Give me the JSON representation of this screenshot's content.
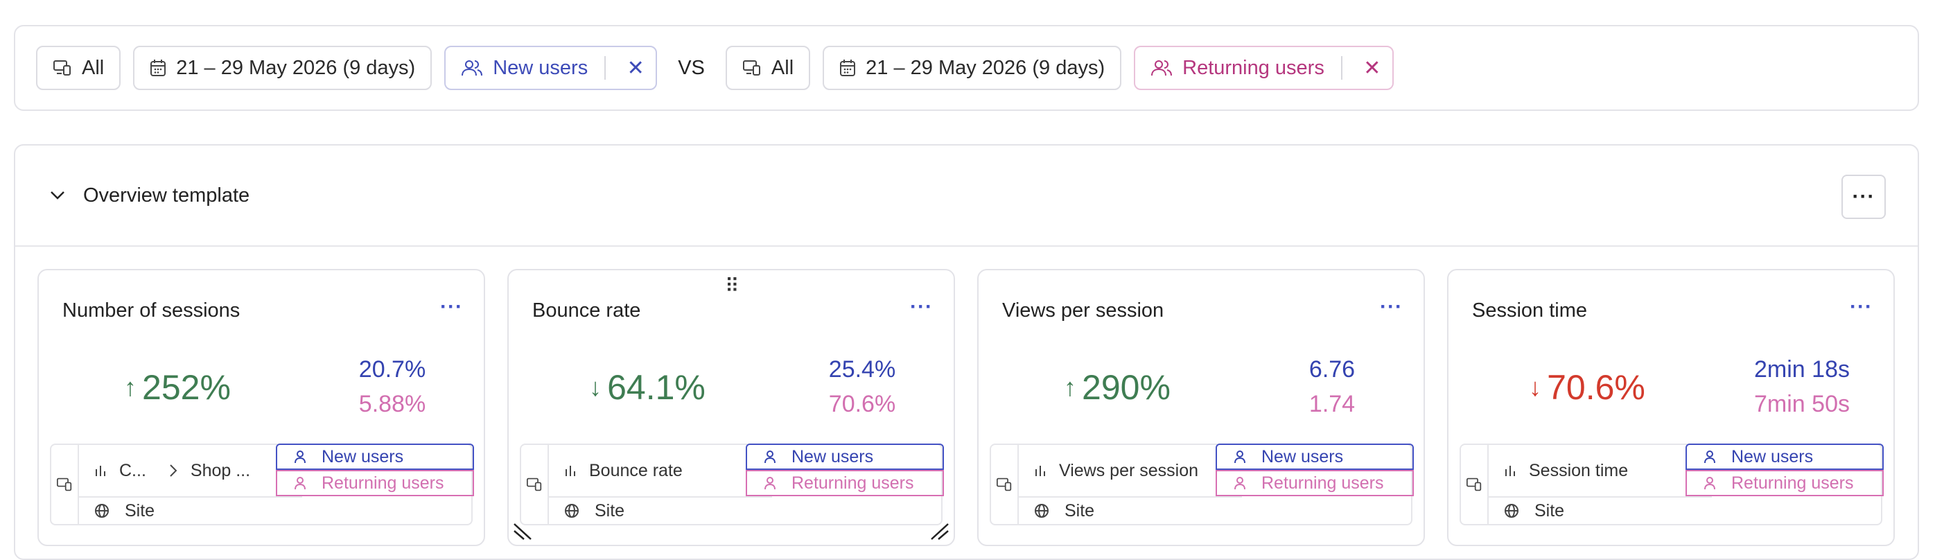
{
  "filters": {
    "left": {
      "device": "All",
      "date": "21 – 29 May 2026 (9 days)",
      "segment": "New users"
    },
    "vs_label": "VS",
    "right": {
      "device": "All",
      "date": "21 – 29 May 2026 (9 days)",
      "segment": "Returning users"
    }
  },
  "overview": {
    "title": "Overview template",
    "more": "···"
  },
  "colors": {
    "new_users": "#3443b0",
    "returning_users": "#d26fb0",
    "positive": "#3f7d52",
    "negative": "#d33a2c"
  },
  "cards": [
    {
      "title": "Number of sessions",
      "delta": "252%",
      "direction": "up",
      "value_new": "20.7%",
      "value_returning": "5.88%",
      "metric_a": "C...",
      "metric_b": "Shop ...",
      "segment_new": "New users",
      "segment_returning": "Returning users",
      "scope": "Site"
    },
    {
      "title": "Bounce rate",
      "delta": "64.1%",
      "direction": "down",
      "value_new": "25.4%",
      "value_returning": "70.6%",
      "metric_a": "Bounce rate",
      "segment_new": "New users",
      "segment_returning": "Returning users",
      "scope": "Site"
    },
    {
      "title": "Views per session",
      "delta": "290%",
      "direction": "up",
      "value_new": "6.76",
      "value_returning": "1.74",
      "metric_a": "Views per session",
      "segment_new": "New users",
      "segment_returning": "Returning users",
      "scope": "Site"
    },
    {
      "title": "Session time",
      "delta": "70.6%",
      "direction": "down",
      "value_new": "2min 18s",
      "value_returning": "7min 50s",
      "metric_a": "Session time",
      "segment_new": "New users",
      "segment_returning": "Returning users",
      "scope": "Site"
    }
  ]
}
